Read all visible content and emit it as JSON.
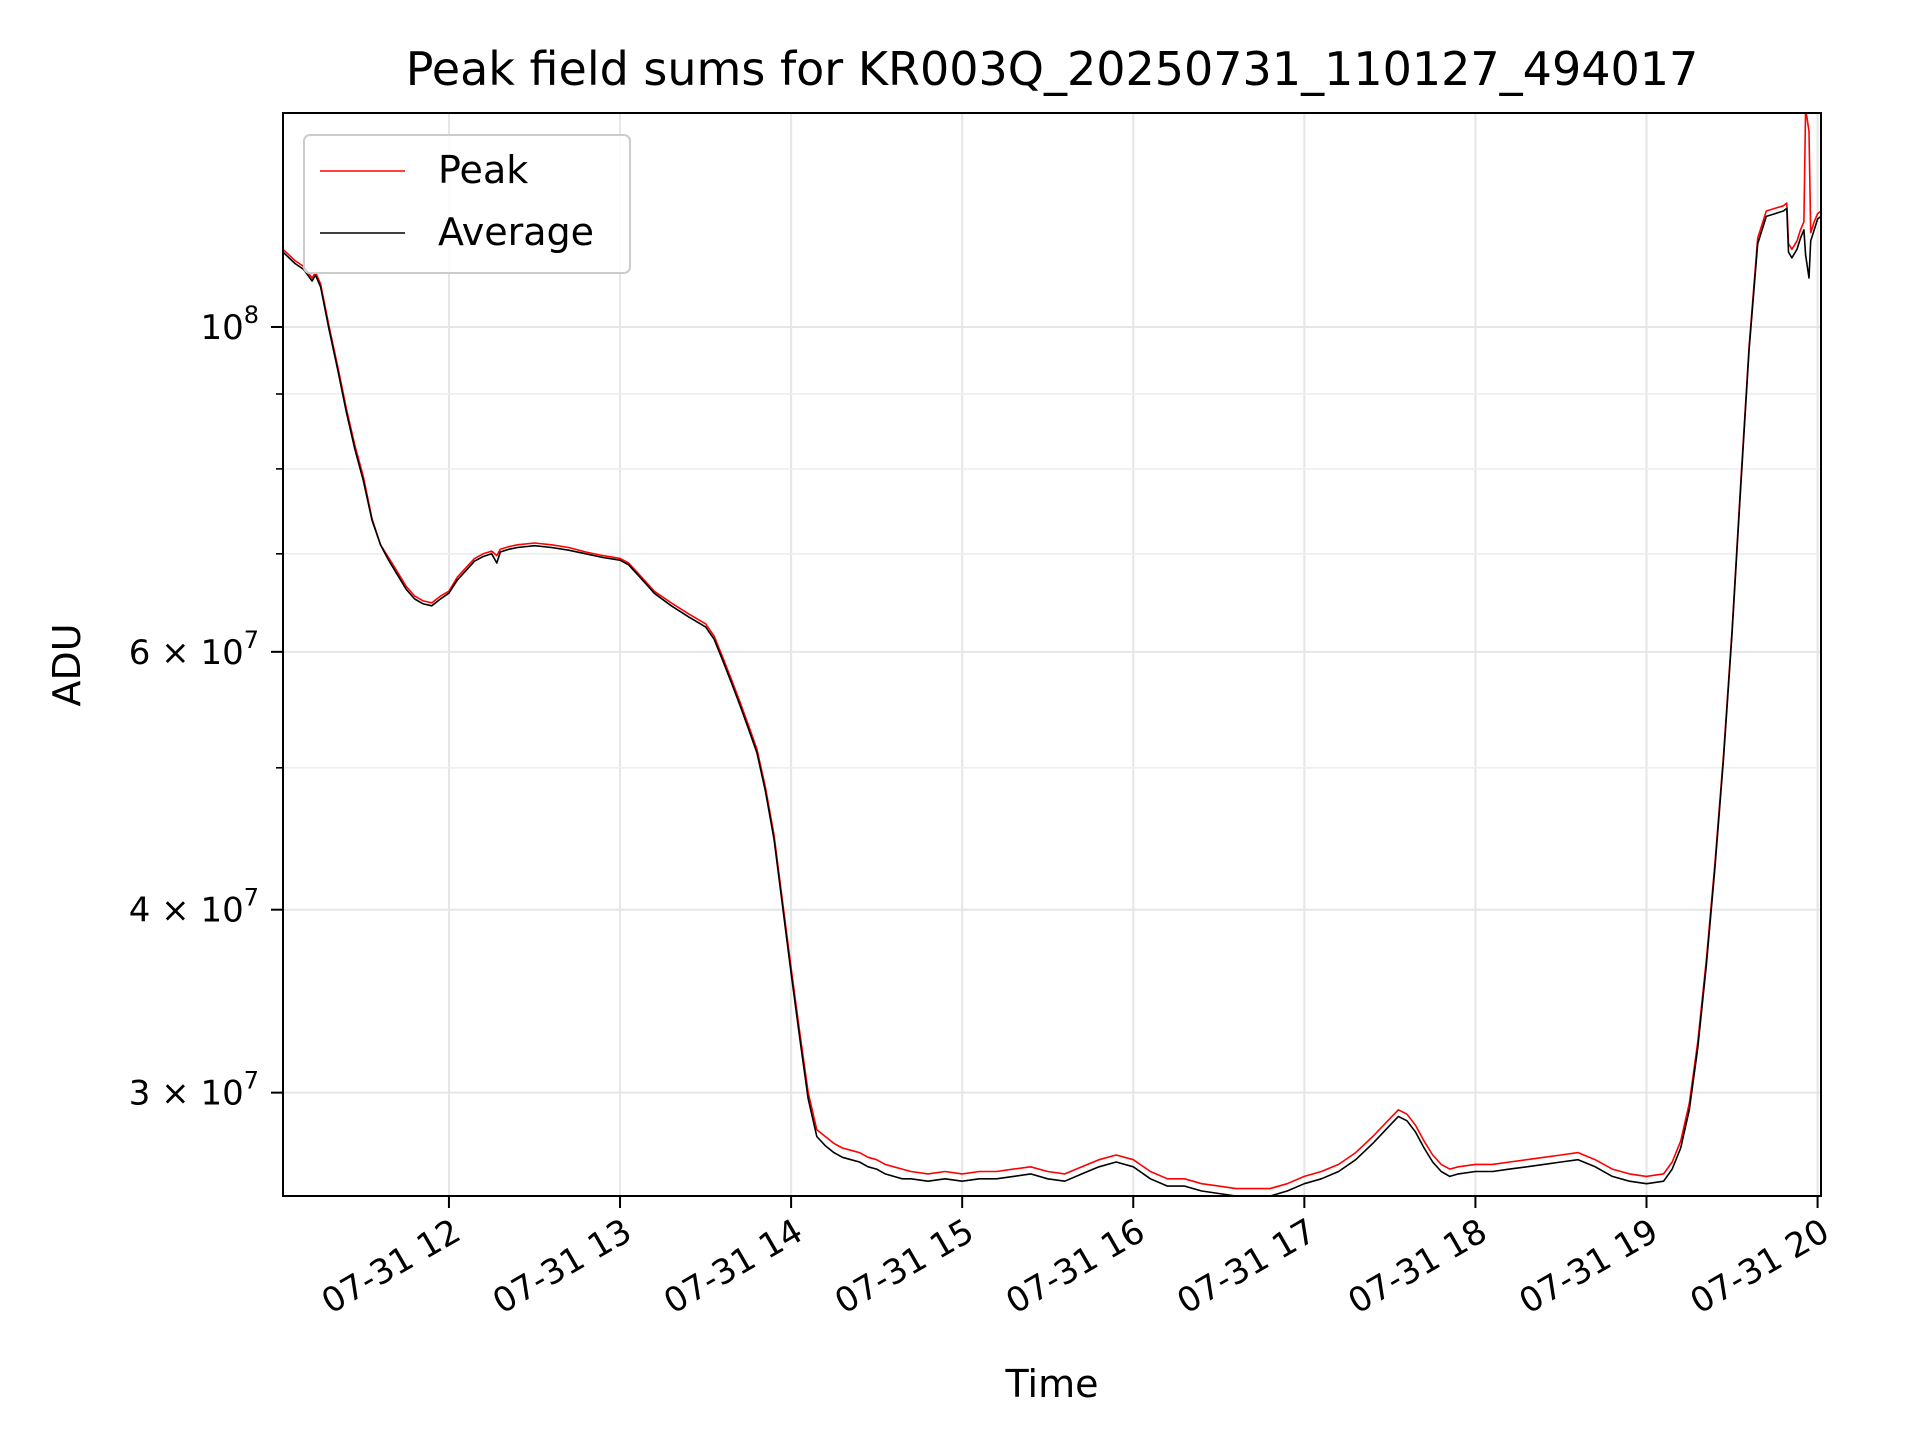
{
  "chart_data": {
    "type": "line",
    "title": "Peak field sums for KR003Q_20250731_110127_494017",
    "xlabel": "Time",
    "ylabel": "ADU",
    "yscale": "log",
    "grid": true,
    "legend_placement": "top-left",
    "xlim": [
      11.03,
      20.02
    ],
    "ylim": [
      25500000,
      140000000
    ],
    "x_ticks": [
      {
        "value": 12,
        "label": "07-31 12"
      },
      {
        "value": 13,
        "label": "07-31 13"
      },
      {
        "value": 14,
        "label": "07-31 14"
      },
      {
        "value": 15,
        "label": "07-31 15"
      },
      {
        "value": 16,
        "label": "07-31 16"
      },
      {
        "value": 17,
        "label": "07-31 17"
      },
      {
        "value": 18,
        "label": "07-31 18"
      },
      {
        "value": 19,
        "label": "07-31 19"
      },
      {
        "value": 20,
        "label": "07-31 20"
      }
    ],
    "y_ticks": [
      {
        "value": 100000000,
        "base": "10",
        "exp": "8",
        "mult": ""
      },
      {
        "value": 60000000,
        "base": "10",
        "exp": "7",
        "mult": "6 × "
      },
      {
        "value": 40000000,
        "base": "10",
        "exp": "7",
        "mult": "4 × "
      },
      {
        "value": 30000000,
        "base": "10",
        "exp": "7",
        "mult": "3 × "
      }
    ],
    "y_minor_ticks": [
      70000000,
      80000000,
      90000000,
      50000000
    ],
    "series": [
      {
        "name": "Peak",
        "color": "#ff0000",
        "points": [
          [
            11.03,
            113000000
          ],
          [
            11.1,
            111000000
          ],
          [
            11.15,
            110000000
          ],
          [
            11.2,
            108000000
          ],
          [
            11.22,
            109000000
          ],
          [
            11.25,
            107000000
          ],
          [
            11.3,
            100000000
          ],
          [
            11.35,
            94000000
          ],
          [
            11.4,
            88000000
          ],
          [
            11.45,
            83000000
          ],
          [
            11.5,
            79000000
          ],
          [
            11.55,
            74000000
          ],
          [
            11.6,
            71000000
          ],
          [
            11.65,
            69500000
          ],
          [
            11.7,
            68000000
          ],
          [
            11.75,
            66500000
          ],
          [
            11.8,
            65500000
          ],
          [
            11.85,
            65000000
          ],
          [
            11.9,
            64800000
          ],
          [
            11.95,
            65500000
          ],
          [
            12.0,
            66000000
          ],
          [
            12.05,
            67500000
          ],
          [
            12.1,
            68500000
          ],
          [
            12.15,
            69500000
          ],
          [
            12.2,
            70000000
          ],
          [
            12.25,
            70300000
          ],
          [
            12.28,
            69800000
          ],
          [
            12.3,
            70500000
          ],
          [
            12.35,
            70800000
          ],
          [
            12.4,
            71000000
          ],
          [
            12.5,
            71200000
          ],
          [
            12.6,
            71000000
          ],
          [
            12.7,
            70700000
          ],
          [
            12.8,
            70200000
          ],
          [
            12.9,
            69800000
          ],
          [
            13.0,
            69500000
          ],
          [
            13.05,
            69000000
          ],
          [
            13.1,
            68000000
          ],
          [
            13.15,
            67000000
          ],
          [
            13.2,
            66000000
          ],
          [
            13.3,
            64800000
          ],
          [
            13.4,
            63700000
          ],
          [
            13.5,
            62700000
          ],
          [
            13.55,
            61500000
          ],
          [
            13.6,
            59500000
          ],
          [
            13.65,
            57500000
          ],
          [
            13.7,
            55500000
          ],
          [
            13.75,
            53500000
          ],
          [
            13.8,
            51500000
          ],
          [
            13.85,
            48500000
          ],
          [
            13.9,
            45000000
          ],
          [
            13.95,
            40500000
          ],
          [
            14.0,
            36500000
          ],
          [
            14.05,
            33000000
          ],
          [
            14.1,
            30000000
          ],
          [
            14.15,
            28300000
          ],
          [
            14.2,
            28000000
          ],
          [
            14.25,
            27700000
          ],
          [
            14.3,
            27500000
          ],
          [
            14.35,
            27400000
          ],
          [
            14.4,
            27300000
          ],
          [
            14.45,
            27100000
          ],
          [
            14.5,
            27000000
          ],
          [
            14.55,
            26800000
          ],
          [
            14.6,
            26700000
          ],
          [
            14.65,
            26600000
          ],
          [
            14.7,
            26500000
          ],
          [
            14.8,
            26400000
          ],
          [
            14.9,
            26500000
          ],
          [
            15.0,
            26400000
          ],
          [
            15.1,
            26500000
          ],
          [
            15.2,
            26500000
          ],
          [
            15.3,
            26600000
          ],
          [
            15.4,
            26700000
          ],
          [
            15.5,
            26500000
          ],
          [
            15.6,
            26400000
          ],
          [
            15.7,
            26700000
          ],
          [
            15.8,
            27000000
          ],
          [
            15.9,
            27200000
          ],
          [
            16.0,
            27000000
          ],
          [
            16.1,
            26500000
          ],
          [
            16.2,
            26200000
          ],
          [
            16.3,
            26200000
          ],
          [
            16.4,
            26000000
          ],
          [
            16.5,
            25900000
          ],
          [
            16.6,
            25800000
          ],
          [
            16.7,
            25800000
          ],
          [
            16.8,
            25800000
          ],
          [
            16.9,
            26000000
          ],
          [
            17.0,
            26300000
          ],
          [
            17.1,
            26500000
          ],
          [
            17.2,
            26800000
          ],
          [
            17.3,
            27300000
          ],
          [
            17.4,
            28000000
          ],
          [
            17.5,
            28800000
          ],
          [
            17.55,
            29200000
          ],
          [
            17.6,
            29000000
          ],
          [
            17.65,
            28500000
          ],
          [
            17.7,
            27800000
          ],
          [
            17.75,
            27200000
          ],
          [
            17.8,
            26800000
          ],
          [
            17.85,
            26600000
          ],
          [
            17.9,
            26700000
          ],
          [
            18.0,
            26800000
          ],
          [
            18.1,
            26800000
          ],
          [
            18.2,
            26900000
          ],
          [
            18.3,
            27000000
          ],
          [
            18.4,
            27100000
          ],
          [
            18.5,
            27200000
          ],
          [
            18.6,
            27300000
          ],
          [
            18.7,
            27000000
          ],
          [
            18.8,
            26600000
          ],
          [
            18.9,
            26400000
          ],
          [
            19.0,
            26300000
          ],
          [
            19.1,
            26400000
          ],
          [
            19.15,
            26900000
          ],
          [
            19.2,
            27800000
          ],
          [
            19.25,
            29500000
          ],
          [
            19.3,
            32500000
          ],
          [
            19.35,
            37000000
          ],
          [
            19.4,
            43000000
          ],
          [
            19.45,
            51000000
          ],
          [
            19.5,
            62000000
          ],
          [
            19.55,
            78000000
          ],
          [
            19.6,
            97000000
          ],
          [
            19.65,
            115000000
          ],
          [
            19.7,
            120000000
          ],
          [
            19.75,
            120500000
          ],
          [
            19.8,
            121000000
          ],
          [
            19.82,
            121500000
          ],
          [
            19.83,
            114000000
          ],
          [
            19.85,
            113000000
          ],
          [
            19.88,
            114500000
          ],
          [
            19.9,
            116500000
          ],
          [
            19.92,
            118000000
          ],
          [
            19.93,
            141000000
          ],
          [
            19.95,
            136000000
          ],
          [
            19.96,
            116000000
          ],
          [
            19.98,
            118000000
          ],
          [
            20.0,
            119500000
          ],
          [
            20.02,
            120000000
          ]
        ]
      },
      {
        "name": "Average",
        "color": "#000000",
        "points": [
          [
            11.03,
            112500000
          ],
          [
            11.1,
            110500000
          ],
          [
            11.15,
            109500000
          ],
          [
            11.2,
            107500000
          ],
          [
            11.22,
            108500000
          ],
          [
            11.25,
            106500000
          ],
          [
            11.3,
            99500000
          ],
          [
            11.35,
            93500000
          ],
          [
            11.4,
            87500000
          ],
          [
            11.45,
            82500000
          ],
          [
            11.5,
            78500000
          ],
          [
            11.55,
            73800000
          ],
          [
            11.6,
            71000000
          ],
          [
            11.65,
            69200000
          ],
          [
            11.7,
            67700000
          ],
          [
            11.75,
            66200000
          ],
          [
            11.8,
            65200000
          ],
          [
            11.85,
            64700000
          ],
          [
            11.9,
            64500000
          ],
          [
            11.95,
            65200000
          ],
          [
            12.0,
            65800000
          ],
          [
            12.05,
            67200000
          ],
          [
            12.1,
            68200000
          ],
          [
            12.15,
            69200000
          ],
          [
            12.2,
            69700000
          ],
          [
            12.25,
            70000000
          ],
          [
            12.28,
            69000000
          ],
          [
            12.3,
            70200000
          ],
          [
            12.35,
            70500000
          ],
          [
            12.4,
            70700000
          ],
          [
            12.5,
            70900000
          ],
          [
            12.6,
            70700000
          ],
          [
            12.7,
            70400000
          ],
          [
            12.8,
            70000000
          ],
          [
            12.9,
            69600000
          ],
          [
            13.0,
            69300000
          ],
          [
            13.05,
            68800000
          ],
          [
            13.1,
            67800000
          ],
          [
            13.15,
            66800000
          ],
          [
            13.2,
            65800000
          ],
          [
            13.3,
            64500000
          ],
          [
            13.4,
            63400000
          ],
          [
            13.5,
            62400000
          ],
          [
            13.55,
            61200000
          ],
          [
            13.6,
            59200000
          ],
          [
            13.65,
            57200000
          ],
          [
            13.7,
            55200000
          ],
          [
            13.75,
            53200000
          ],
          [
            13.8,
            51200000
          ],
          [
            13.85,
            48200000
          ],
          [
            13.9,
            44700000
          ],
          [
            13.95,
            40200000
          ],
          [
            14.0,
            36200000
          ],
          [
            14.05,
            32700000
          ],
          [
            14.1,
            29700000
          ],
          [
            14.15,
            28000000
          ],
          [
            14.2,
            27600000
          ],
          [
            14.25,
            27300000
          ],
          [
            14.3,
            27100000
          ],
          [
            14.35,
            27000000
          ],
          [
            14.4,
            26900000
          ],
          [
            14.45,
            26700000
          ],
          [
            14.5,
            26600000
          ],
          [
            14.55,
            26400000
          ],
          [
            14.6,
            26300000
          ],
          [
            14.65,
            26200000
          ],
          [
            14.7,
            26200000
          ],
          [
            14.8,
            26100000
          ],
          [
            14.9,
            26200000
          ],
          [
            15.0,
            26100000
          ],
          [
            15.1,
            26200000
          ],
          [
            15.2,
            26200000
          ],
          [
            15.3,
            26300000
          ],
          [
            15.4,
            26400000
          ],
          [
            15.5,
            26200000
          ],
          [
            15.6,
            26100000
          ],
          [
            15.7,
            26400000
          ],
          [
            15.8,
            26700000
          ],
          [
            15.9,
            26900000
          ],
          [
            16.0,
            26700000
          ],
          [
            16.1,
            26200000
          ],
          [
            16.2,
            25900000
          ],
          [
            16.3,
            25900000
          ],
          [
            16.4,
            25700000
          ],
          [
            16.5,
            25600000
          ],
          [
            16.6,
            25500000
          ],
          [
            16.7,
            25500000
          ],
          [
            16.8,
            25500000
          ],
          [
            16.9,
            25700000
          ],
          [
            17.0,
            26000000
          ],
          [
            17.1,
            26200000
          ],
          [
            17.2,
            26500000
          ],
          [
            17.3,
            27000000
          ],
          [
            17.4,
            27700000
          ],
          [
            17.5,
            28500000
          ],
          [
            17.55,
            28900000
          ],
          [
            17.6,
            28700000
          ],
          [
            17.65,
            28200000
          ],
          [
            17.7,
            27500000
          ],
          [
            17.75,
            26900000
          ],
          [
            17.8,
            26500000
          ],
          [
            17.85,
            26300000
          ],
          [
            17.9,
            26400000
          ],
          [
            18.0,
            26500000
          ],
          [
            18.1,
            26500000
          ],
          [
            18.2,
            26600000
          ],
          [
            18.3,
            26700000
          ],
          [
            18.4,
            26800000
          ],
          [
            18.5,
            26900000
          ],
          [
            18.6,
            27000000
          ],
          [
            18.7,
            26700000
          ],
          [
            18.8,
            26300000
          ],
          [
            18.9,
            26100000
          ],
          [
            19.0,
            26000000
          ],
          [
            19.1,
            26100000
          ],
          [
            19.15,
            26600000
          ],
          [
            19.2,
            27500000
          ],
          [
            19.25,
            29200000
          ],
          [
            19.3,
            32200000
          ],
          [
            19.35,
            36700000
          ],
          [
            19.4,
            42700000
          ],
          [
            19.45,
            50700000
          ],
          [
            19.5,
            61700000
          ],
          [
            19.55,
            77500000
          ],
          [
            19.6,
            96500000
          ],
          [
            19.65,
            114000000
          ],
          [
            19.7,
            119000000
          ],
          [
            19.75,
            119500000
          ],
          [
            19.8,
            120000000
          ],
          [
            19.82,
            120500000
          ],
          [
            19.83,
            112500000
          ],
          [
            19.85,
            111500000
          ],
          [
            19.88,
            113000000
          ],
          [
            19.9,
            115000000
          ],
          [
            19.92,
            116500000
          ],
          [
            19.93,
            112000000
          ],
          [
            19.95,
            108000000
          ],
          [
            19.96,
            114500000
          ],
          [
            19.98,
            116500000
          ],
          [
            20.0,
            118500000
          ],
          [
            20.02,
            119000000
          ]
        ]
      }
    ]
  }
}
